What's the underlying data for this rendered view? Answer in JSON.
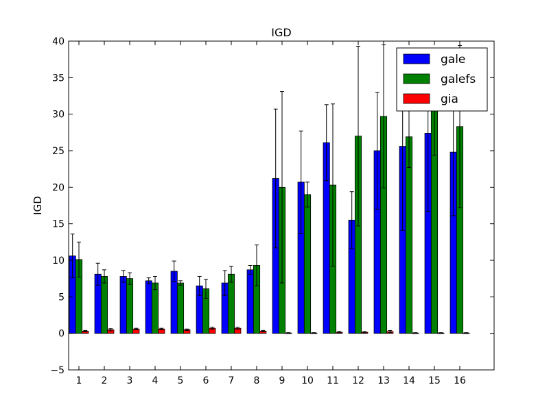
{
  "chart_data": {
    "type": "bar",
    "title": "IGD",
    "xlabel": "",
    "ylabel": "IGD",
    "ylim": [
      -5,
      40
    ],
    "yticks": [
      -5,
      0,
      5,
      10,
      15,
      20,
      25,
      30,
      35,
      40
    ],
    "categories": [
      "1",
      "2",
      "3",
      "4",
      "5",
      "6",
      "7",
      "8",
      "9",
      "10",
      "11",
      "12",
      "13",
      "14",
      "15",
      "16"
    ],
    "grid": false,
    "legend_position": "top-right",
    "series": [
      {
        "name": "gale",
        "color": "#0000ff",
        "values": [
          10.6,
          8.1,
          7.8,
          7.2,
          8.5,
          6.5,
          6.9,
          8.7,
          21.2,
          20.7,
          26.1,
          15.5,
          25.0,
          25.6,
          27.4,
          24.8
        ],
        "errors": [
          3.0,
          1.5,
          0.8,
          0.4,
          1.4,
          1.3,
          1.7,
          0.6,
          9.5,
          7.0,
          5.2,
          3.9,
          8.0,
          11.5,
          10.7,
          8.7
        ]
      },
      {
        "name": "galefs",
        "color": "#008000",
        "values": [
          10.1,
          7.8,
          7.5,
          6.9,
          6.9,
          6.1,
          8.1,
          9.3,
          20.0,
          19.0,
          20.3,
          27.0,
          29.7,
          26.9,
          30.5,
          28.3
        ],
        "errors": [
          2.4,
          0.9,
          0.8,
          0.9,
          0.3,
          1.3,
          1.1,
          2.8,
          13.1,
          1.7,
          11.1,
          12.3,
          9.8,
          4.2,
          6.1,
          11.1
        ]
      },
      {
        "name": "gia",
        "color": "#ff0000",
        "values": [
          0.3,
          0.5,
          0.6,
          0.6,
          0.5,
          0.7,
          0.7,
          0.3,
          0.05,
          0.05,
          0.15,
          0.15,
          0.25,
          0.05,
          0.05,
          0.05
        ],
        "errors": [
          0.1,
          0.15,
          0.1,
          0.1,
          0.1,
          0.15,
          0.15,
          0.1,
          0.05,
          0.05,
          0.1,
          0.1,
          0.15,
          0.05,
          0.05,
          0.05
        ]
      }
    ]
  }
}
